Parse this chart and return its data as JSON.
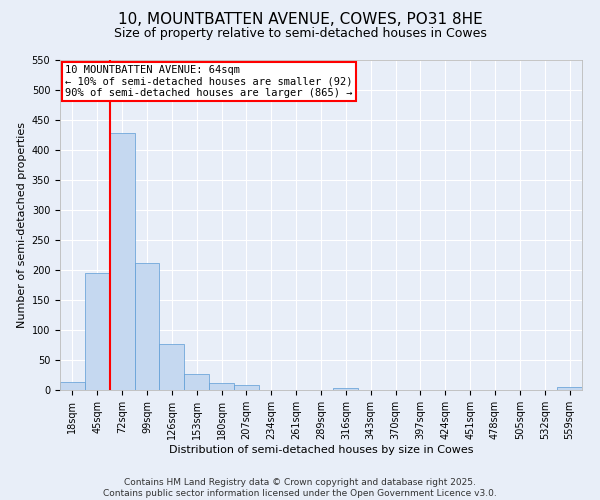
{
  "title": "10, MOUNTBATTEN AVENUE, COWES, PO31 8HE",
  "subtitle": "Size of property relative to semi-detached houses in Cowes",
  "xlabel": "Distribution of semi-detached houses by size in Cowes",
  "ylabel": "Number of semi-detached properties",
  "bar_color": "#c5d8f0",
  "bar_edge_color": "#5b9bd5",
  "background_color": "#e8eef8",
  "grid_color": "#ffffff",
  "categories": [
    "18sqm",
    "45sqm",
    "72sqm",
    "99sqm",
    "126sqm",
    "153sqm",
    "180sqm",
    "207sqm",
    "234sqm",
    "261sqm",
    "289sqm",
    "316sqm",
    "343sqm",
    "370sqm",
    "397sqm",
    "424sqm",
    "451sqm",
    "478sqm",
    "505sqm",
    "532sqm",
    "559sqm"
  ],
  "values": [
    13,
    195,
    428,
    212,
    77,
    27,
    11,
    8,
    0,
    0,
    0,
    4,
    0,
    0,
    0,
    0,
    0,
    0,
    0,
    0,
    5
  ],
  "ylim": [
    0,
    550
  ],
  "yticks": [
    0,
    50,
    100,
    150,
    200,
    250,
    300,
    350,
    400,
    450,
    500,
    550
  ],
  "property_label": "10 MOUNTBATTEN AVENUE: 64sqm",
  "pct_smaller": 10,
  "pct_larger": 90,
  "n_smaller": 92,
  "n_larger": 865,
  "vline_bin_index": 2,
  "footer_line1": "Contains HM Land Registry data © Crown copyright and database right 2025.",
  "footer_line2": "Contains public sector information licensed under the Open Government Licence v3.0.",
  "title_fontsize": 11,
  "subtitle_fontsize": 9,
  "axis_label_fontsize": 8,
  "tick_fontsize": 7,
  "annotation_fontsize": 7.5,
  "footer_fontsize": 6.5
}
